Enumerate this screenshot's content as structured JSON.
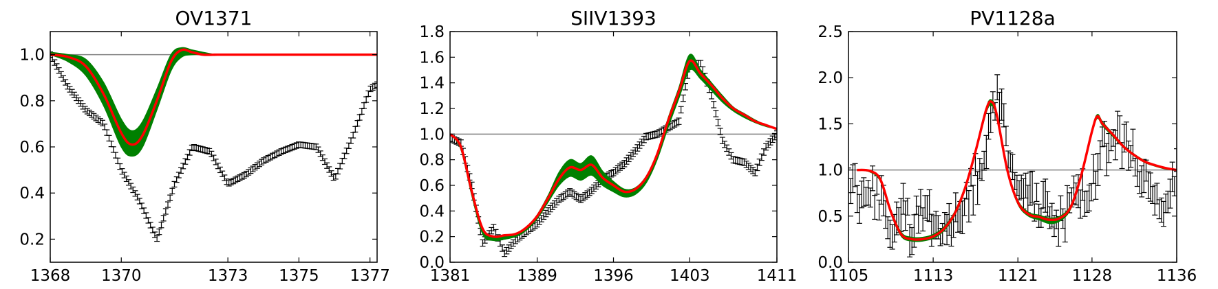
{
  "chart_data": [
    {
      "type": "line",
      "title": "OV1371",
      "xlabel": "",
      "ylabel": "",
      "xlim": [
        1368,
        1377.2
      ],
      "ylim": [
        0.1,
        1.1
      ],
      "xticks": [
        1368,
        1370,
        1373,
        1375,
        1377
      ],
      "yticks": [
        0.2,
        0.4,
        0.6,
        0.8,
        1.0
      ],
      "xtick_labels": [
        "1368",
        "1370",
        "1373",
        "1375",
        "1377"
      ],
      "ytick_labels": [
        "0.2",
        "0.4",
        "0.6",
        "0.8",
        "1.0"
      ],
      "continuum": 1.0,
      "colors": {
        "data": "#000000",
        "model_band": "#008000",
        "model_best": "#ff0000",
        "continuum": "#808080"
      },
      "data_points": {
        "x": [
          1368.0,
          1368.5,
          1369.0,
          1369.5,
          1370.0,
          1370.5,
          1371.0,
          1371.5,
          1372.0,
          1372.5,
          1373.0,
          1373.5,
          1374.0,
          1374.5,
          1375.0,
          1375.5,
          1376.0,
          1376.5,
          1377.0,
          1377.2
        ],
        "y": [
          1.0,
          0.86,
          0.76,
          0.7,
          0.5,
          0.37,
          0.2,
          0.44,
          0.6,
          0.58,
          0.44,
          0.48,
          0.54,
          0.58,
          0.61,
          0.6,
          0.46,
          0.64,
          0.85,
          0.87
        ],
        "yerr": 0.012
      },
      "model_best": {
        "x": [
          1368.0,
          1368.5,
          1369.0,
          1369.5,
          1370.0,
          1370.3,
          1370.6,
          1371.0,
          1371.4,
          1371.7,
          1372.0,
          1372.3,
          1372.7,
          1373.0,
          1377.2
        ],
        "y": [
          1.0,
          0.99,
          0.95,
          0.83,
          0.66,
          0.61,
          0.65,
          0.8,
          0.97,
          1.02,
          1.01,
          1.0,
          1.0,
          1.0,
          1.0
        ]
      },
      "model_band": {
        "x": [
          1368.0,
          1368.5,
          1369.0,
          1369.5,
          1370.0,
          1370.3,
          1370.6,
          1371.0,
          1371.4,
          1371.7,
          1372.0,
          1372.3,
          1372.7,
          1373.0,
          1377.2
        ],
        "upper": [
          1.01,
          1.0,
          0.98,
          0.88,
          0.72,
          0.67,
          0.71,
          0.85,
          1.0,
          1.03,
          1.02,
          1.01,
          1.0,
          1.0,
          1.0
        ],
        "lower": [
          1.0,
          0.97,
          0.91,
          0.78,
          0.6,
          0.56,
          0.6,
          0.76,
          0.93,
          0.99,
          1.0,
          1.0,
          1.0,
          1.0,
          1.0
        ]
      }
    },
    {
      "type": "line",
      "title": "SIIV1393",
      "xlabel": "",
      "ylabel": "",
      "xlim": [
        1381,
        1411
      ],
      "ylim": [
        0.0,
        1.8
      ],
      "xticks": [
        1381,
        1389,
        1396,
        1403,
        1411
      ],
      "yticks": [
        0.0,
        0.2,
        0.4,
        0.6,
        0.8,
        1.0,
        1.2,
        1.4,
        1.6,
        1.8
      ],
      "xtick_labels": [
        "1381",
        "1389",
        "1396",
        "1403",
        "1411"
      ],
      "ytick_labels": [
        "0.0",
        "0.2",
        "0.4",
        "0.6",
        "0.8",
        "1.0",
        "1.2",
        "1.4",
        "1.6",
        "1.8"
      ],
      "continuum": 1.0,
      "colors": {
        "data": "#000000",
        "model_band": "#008000",
        "model_best": "#ff0000",
        "continuum": "#808080"
      },
      "data_points": {
        "x": [
          1381.0,
          1382.0,
          1383.0,
          1384.0,
          1385.0,
          1386.0,
          1387.0,
          1388.0,
          1389.0,
          1390.0,
          1391.0,
          1392.0,
          1393.0,
          1394.0,
          1395.0,
          1396.0,
          1397.0,
          1398.0,
          1399.0,
          1400.0,
          1401.0,
          1402.0,
          1403.0,
          1404.0,
          1405.0,
          1406.0,
          1407.0,
          1408.0,
          1409.0,
          1410.0,
          1411.0
        ],
        "y": [
          0.97,
          0.93,
          0.6,
          0.15,
          0.27,
          0.07,
          0.17,
          0.24,
          0.3,
          0.4,
          0.49,
          0.55,
          0.49,
          0.56,
          0.65,
          0.7,
          0.77,
          0.87,
          0.98,
          1.0,
          1.05,
          1.1,
          1.55,
          1.55,
          1.3,
          0.95,
          0.8,
          0.78,
          0.7,
          0.9,
          1.0
        ],
        "yerr": 0.025
      },
      "model_best": {
        "x": [
          1381.0,
          1382.0,
          1383.0,
          1384.0,
          1385.0,
          1386.0,
          1387.0,
          1388.0,
          1389.0,
          1390.0,
          1391.0,
          1392.0,
          1393.0,
          1394.0,
          1395.0,
          1396.0,
          1397.0,
          1398.0,
          1399.0,
          1400.0,
          1401.0,
          1402.0,
          1403.0,
          1404.0,
          1405.0,
          1406.0,
          1407.0,
          1408.0,
          1409.0,
          1410.0,
          1411.0
        ],
        "y": [
          1.0,
          0.9,
          0.55,
          0.26,
          0.2,
          0.21,
          0.22,
          0.27,
          0.36,
          0.5,
          0.65,
          0.74,
          0.72,
          0.76,
          0.66,
          0.6,
          0.55,
          0.57,
          0.66,
          0.84,
          1.1,
          1.33,
          1.57,
          1.47,
          1.38,
          1.28,
          1.2,
          1.15,
          1.1,
          1.07,
          1.04
        ]
      },
      "model_band": {
        "x": [
          1381.0,
          1382.0,
          1383.0,
          1384.0,
          1385.0,
          1386.0,
          1387.0,
          1388.0,
          1389.0,
          1390.0,
          1391.0,
          1392.0,
          1393.0,
          1394.0,
          1395.0,
          1396.0,
          1397.0,
          1398.0,
          1399.0,
          1400.0,
          1401.0,
          1402.0,
          1403.0,
          1404.0,
          1405.0,
          1406.0,
          1407.0,
          1408.0,
          1409.0,
          1410.0,
          1411.0
        ],
        "upper": [
          1.0,
          0.9,
          0.56,
          0.25,
          0.2,
          0.2,
          0.22,
          0.27,
          0.37,
          0.52,
          0.7,
          0.8,
          0.77,
          0.83,
          0.71,
          0.63,
          0.57,
          0.58,
          0.67,
          0.85,
          1.12,
          1.36,
          1.62,
          1.5,
          1.4,
          1.3,
          1.21,
          1.16,
          1.11,
          1.07,
          1.04
        ],
        "lower": [
          1.0,
          0.88,
          0.52,
          0.22,
          0.17,
          0.18,
          0.2,
          0.25,
          0.34,
          0.47,
          0.6,
          0.67,
          0.64,
          0.68,
          0.6,
          0.55,
          0.51,
          0.53,
          0.62,
          0.8,
          1.05,
          1.28,
          1.5,
          1.43,
          1.34,
          1.25,
          1.18,
          1.13,
          1.09,
          1.06,
          1.04
        ]
      }
    },
    {
      "type": "line",
      "title": "PV1128a",
      "xlabel": "",
      "ylabel": "",
      "xlim": [
        1105,
        1136
      ],
      "ylim": [
        0.0,
        2.5
      ],
      "xticks": [
        1105,
        1113,
        1121,
        1128,
        1136
      ],
      "yticks": [
        0.0,
        0.5,
        1.0,
        1.5,
        2.0,
        2.5
      ],
      "xtick_labels": [
        "1105",
        "1113",
        "1121",
        "1128",
        "1136"
      ],
      "ytick_labels": [
        "0.0",
        "0.5",
        "1.0",
        "1.5",
        "2.0",
        "2.5"
      ],
      "continuum": 1.0,
      "colors": {
        "data": "#000000",
        "model_band": "#008000",
        "model_best": "#ff0000",
        "continuum": "#808080"
      },
      "data_points": {
        "x": [
          1105.0,
          1106.0,
          1107.0,
          1108.0,
          1109.0,
          1110.0,
          1111.0,
          1112.0,
          1113.0,
          1114.0,
          1115.0,
          1116.0,
          1117.0,
          1118.0,
          1119.0,
          1120.0,
          1121.0,
          1122.0,
          1123.0,
          1124.0,
          1125.0,
          1126.0,
          1127.0,
          1128.0,
          1129.0,
          1130.0,
          1131.0,
          1132.0,
          1133.0,
          1134.0,
          1135.0,
          1136.0
        ],
        "y": [
          0.9,
          0.75,
          0.8,
          0.65,
          0.4,
          0.55,
          0.35,
          0.6,
          0.45,
          0.42,
          0.5,
          0.65,
          0.9,
          1.3,
          1.85,
          1.3,
          0.85,
          0.7,
          0.6,
          0.55,
          0.5,
          0.58,
          0.75,
          0.9,
          1.2,
          1.4,
          1.25,
          1.1,
          0.9,
          0.7,
          0.6,
          0.95
        ],
        "yerr": 0.15
      },
      "model_best": {
        "x": [
          1105.8,
          1107.0,
          1108.0,
          1109.0,
          1110.0,
          1111.0,
          1112.0,
          1113.0,
          1114.0,
          1115.0,
          1116.0,
          1117.0,
          1118.0,
          1118.5,
          1119.0,
          1120.0,
          1121.0,
          1122.0,
          1123.0,
          1124.0,
          1125.0,
          1126.0,
          1127.0,
          1128.0,
          1128.5,
          1129.0,
          1130.0,
          1131.0,
          1132.0,
          1133.0,
          1134.0,
          1135.0,
          1136.0
        ],
        "y": [
          1.0,
          0.99,
          0.9,
          0.55,
          0.3,
          0.25,
          0.25,
          0.28,
          0.36,
          0.52,
          0.8,
          1.2,
          1.65,
          1.74,
          1.6,
          1.0,
          0.65,
          0.52,
          0.49,
          0.46,
          0.48,
          0.6,
          0.95,
          1.42,
          1.58,
          1.5,
          1.38,
          1.25,
          1.16,
          1.09,
          1.05,
          1.02,
          1.0
        ]
      },
      "model_band": {
        "x": [
          1105.8,
          1107.0,
          1108.0,
          1109.0,
          1110.0,
          1111.0,
          1112.0,
          1113.0,
          1114.0,
          1115.0,
          1116.0,
          1117.0,
          1118.0,
          1118.5,
          1119.0,
          1120.0,
          1121.0,
          1122.0,
          1123.0,
          1124.0,
          1125.0,
          1126.0,
          1127.0,
          1128.0,
          1128.5,
          1129.0,
          1130.0,
          1131.0,
          1132.0,
          1133.0,
          1134.0,
          1135.0,
          1136.0
        ],
        "upper": [
          1.0,
          0.99,
          0.9,
          0.57,
          0.32,
          0.27,
          0.27,
          0.3,
          0.38,
          0.54,
          0.82,
          1.22,
          1.67,
          1.76,
          1.62,
          1.02,
          0.67,
          0.54,
          0.51,
          0.48,
          0.5,
          0.62,
          0.97,
          1.44,
          1.6,
          1.52,
          1.39,
          1.26,
          1.17,
          1.1,
          1.05,
          1.02,
          1.0
        ],
        "lower": [
          1.0,
          0.98,
          0.88,
          0.53,
          0.28,
          0.23,
          0.23,
          0.26,
          0.34,
          0.5,
          0.78,
          1.18,
          1.62,
          1.7,
          1.57,
          0.98,
          0.63,
          0.5,
          0.46,
          0.42,
          0.45,
          0.58,
          0.93,
          1.4,
          1.56,
          1.48,
          1.36,
          1.24,
          1.15,
          1.08,
          1.04,
          1.01,
          1.0
        ]
      }
    }
  ]
}
